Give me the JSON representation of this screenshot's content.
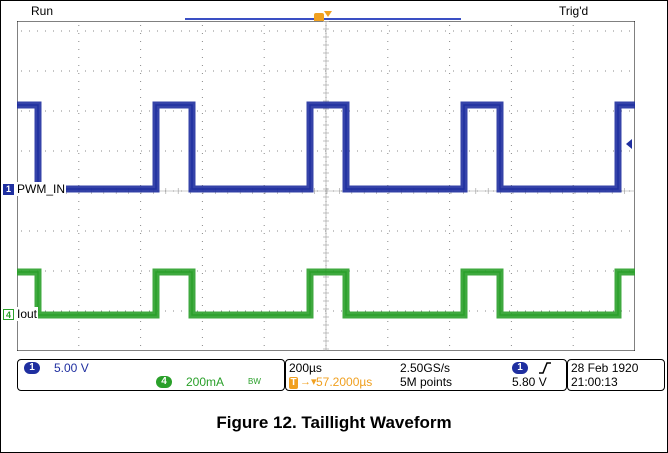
{
  "status": {
    "run": "Run",
    "trigger_state": "Trig'd"
  },
  "channels": {
    "ch1": {
      "number": "1",
      "label": "PWM_IN",
      "color": "#1f2fa0",
      "scale": "5.00 V"
    },
    "ch4": {
      "number": "4",
      "label": "Iout",
      "color": "#2aa02a",
      "scale": "200mA",
      "bandwidth": "BW"
    }
  },
  "timebase": {
    "scale": "200µs",
    "sample_rate": "2.50GS/s",
    "delay": "57.2000µs",
    "record_length": "5M points"
  },
  "trigger": {
    "source": "1",
    "slope": "rising",
    "level": "5.80 V",
    "marker": "T"
  },
  "datetime": {
    "date": "28 Feb  1920",
    "time": "21:00:13"
  },
  "caption": "Figure 12. Taillight Waveform",
  "colors": {
    "trigger": "#f0a020",
    "timeline": "#3a4fc4",
    "ch1_trace": "#1f2fa0",
    "ch4_trace": "#2aa02a"
  }
}
